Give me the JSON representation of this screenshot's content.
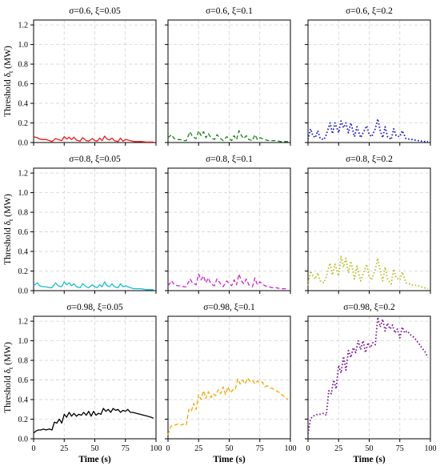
{
  "ylabel": "Threshold δ",
  "ylabel_sub": "t",
  "ylabel_unit": " (MW)",
  "xlabel": "Time (s)",
  "chart_data": [
    {
      "type": "line",
      "title": "σ=0.6, ξ=0.05",
      "color": "#e41a1c",
      "dash": "solid",
      "xlim": [
        0,
        100
      ],
      "ylim": [
        0,
        1.25
      ],
      "x": [
        0,
        3,
        5,
        8,
        10,
        13,
        15,
        18,
        20,
        23,
        25,
        27,
        29,
        31,
        33,
        35,
        38,
        40,
        43,
        45,
        48,
        50,
        52,
        54,
        56,
        58,
        60,
        62,
        64,
        66,
        69,
        71,
        73,
        75,
        77,
        79,
        82,
        85,
        88,
        92,
        95,
        98
      ],
      "y": [
        0.06,
        0.05,
        0.035,
        0.03,
        0.03,
        0.02,
        0.01,
        0.04,
        0.03,
        0.02,
        0.06,
        0.035,
        0.055,
        0.03,
        0.055,
        0.025,
        0.015,
        0.05,
        0.02,
        0.015,
        0.04,
        0.02,
        0.015,
        0.045,
        0.02,
        0.065,
        0.035,
        0.025,
        0.045,
        0.02,
        0.01,
        0.045,
        0.015,
        0.03,
        0.025,
        0.02,
        0.01,
        0.01,
        0.01,
        0.005,
        0.005,
        0.005
      ]
    },
    {
      "type": "line",
      "title": "σ=0.6, ξ=0.1",
      "color": "#1a7f1a",
      "dash": "dashed",
      "xlim": [
        0,
        100
      ],
      "ylim": [
        0,
        1.25
      ],
      "x": [
        0,
        3,
        5,
        8,
        10,
        13,
        15,
        18,
        20,
        23,
        25,
        27,
        29,
        31,
        33,
        35,
        38,
        40,
        43,
        45,
        48,
        50,
        52,
        54,
        56,
        58,
        60,
        62,
        64,
        66,
        69,
        71,
        73,
        75,
        77,
        79,
        82,
        85,
        88,
        92,
        95,
        98
      ],
      "y": [
        0.05,
        0.08,
        0.04,
        0.03,
        0.03,
        0.02,
        0.02,
        0.11,
        0.06,
        0.04,
        0.12,
        0.07,
        0.11,
        0.05,
        0.09,
        0.05,
        0.03,
        0.08,
        0.04,
        0.02,
        0.06,
        0.04,
        0.02,
        0.07,
        0.03,
        0.12,
        0.07,
        0.04,
        0.07,
        0.03,
        0.02,
        0.08,
        0.03,
        0.05,
        0.04,
        0.03,
        0.02,
        0.02,
        0.02,
        0.01,
        0.01,
        0.01
      ]
    },
    {
      "type": "line",
      "title": "σ=0.6, ξ=0.2",
      "color": "#1a1acc",
      "dash": "dotted",
      "xlim": [
        0,
        100
      ],
      "ylim": [
        0,
        1.25
      ],
      "x": [
        0,
        2,
        4,
        6,
        8,
        10,
        13,
        15,
        18,
        20,
        22,
        25,
        27,
        29,
        31,
        33,
        35,
        38,
        40,
        43,
        45,
        48,
        50,
        52,
        55,
        57,
        59,
        61,
        63,
        65,
        68,
        70,
        72,
        75,
        77,
        80,
        85,
        90,
        95,
        98
      ],
      "y": [
        0.03,
        0.14,
        0.07,
        0.05,
        0.12,
        0.04,
        0.03,
        0.08,
        0.2,
        0.09,
        0.2,
        0.1,
        0.22,
        0.15,
        0.2,
        0.1,
        0.2,
        0.06,
        0.16,
        0.05,
        0.1,
        0.17,
        0.08,
        0.06,
        0.14,
        0.24,
        0.12,
        0.05,
        0.16,
        0.06,
        0.03,
        0.14,
        0.07,
        0.06,
        0.12,
        0.04,
        0.03,
        0.02,
        0.01,
        0.01
      ]
    },
    {
      "type": "line",
      "title": "σ=0.8, ξ=0.05",
      "color": "#17becf",
      "dash": "solid",
      "xlim": [
        0,
        100
      ],
      "ylim": [
        0,
        1.25
      ],
      "x": [
        0,
        3,
        5,
        8,
        10,
        13,
        15,
        18,
        20,
        23,
        25,
        27,
        29,
        31,
        33,
        35,
        38,
        40,
        43,
        45,
        48,
        50,
        52,
        54,
        56,
        58,
        60,
        62,
        64,
        66,
        69,
        71,
        73,
        75,
        77,
        79,
        82,
        85,
        88,
        92,
        95,
        98
      ],
      "y": [
        0.05,
        0.08,
        0.05,
        0.04,
        0.04,
        0.03,
        0.03,
        0.08,
        0.05,
        0.04,
        0.09,
        0.06,
        0.08,
        0.05,
        0.07,
        0.04,
        0.03,
        0.07,
        0.04,
        0.03,
        0.06,
        0.04,
        0.03,
        0.06,
        0.04,
        0.09,
        0.05,
        0.04,
        0.07,
        0.04,
        0.03,
        0.07,
        0.04,
        0.05,
        0.04,
        0.03,
        0.02,
        0.02,
        0.02,
        0.01,
        0.01,
        0.01
      ]
    },
    {
      "type": "line",
      "title": "σ=0.8, ξ=0.1",
      "color": "#cc22cc",
      "dash": "dashed",
      "xlim": [
        0,
        100
      ],
      "ylim": [
        0,
        1.25
      ],
      "x": [
        0,
        3,
        5,
        8,
        10,
        13,
        15,
        18,
        20,
        23,
        25,
        27,
        29,
        31,
        33,
        35,
        38,
        40,
        43,
        45,
        48,
        50,
        52,
        54,
        56,
        58,
        60,
        62,
        64,
        66,
        69,
        71,
        73,
        75,
        77,
        79,
        82,
        85,
        88,
        92,
        95,
        98
      ],
      "y": [
        0.05,
        0.1,
        0.06,
        0.05,
        0.05,
        0.04,
        0.04,
        0.12,
        0.08,
        0.06,
        0.17,
        0.11,
        0.15,
        0.08,
        0.13,
        0.07,
        0.05,
        0.12,
        0.07,
        0.04,
        0.1,
        0.07,
        0.05,
        0.11,
        0.06,
        0.17,
        0.1,
        0.07,
        0.12,
        0.06,
        0.04,
        0.13,
        0.06,
        0.09,
        0.07,
        0.05,
        0.04,
        0.03,
        0.03,
        0.02,
        0.02,
        0.02
      ]
    },
    {
      "type": "line",
      "title": "σ=0.8, ξ=0.2",
      "color": "#bdbd22",
      "dash": "dotted",
      "xlim": [
        0,
        100
      ],
      "ylim": [
        0,
        1.25
      ],
      "x": [
        0,
        2,
        4,
        6,
        8,
        10,
        13,
        15,
        18,
        20,
        22,
        25,
        27,
        29,
        31,
        33,
        35,
        38,
        40,
        43,
        45,
        48,
        50,
        52,
        55,
        57,
        59,
        61,
        63,
        65,
        68,
        70,
        72,
        75,
        77,
        80,
        85,
        90,
        95,
        98
      ],
      "y": [
        0.05,
        0.2,
        0.15,
        0.12,
        0.18,
        0.1,
        0.08,
        0.14,
        0.28,
        0.16,
        0.27,
        0.15,
        0.35,
        0.24,
        0.33,
        0.18,
        0.3,
        0.12,
        0.25,
        0.1,
        0.17,
        0.27,
        0.14,
        0.11,
        0.22,
        0.33,
        0.2,
        0.1,
        0.24,
        0.12,
        0.07,
        0.22,
        0.13,
        0.11,
        0.19,
        0.08,
        0.06,
        0.05,
        0.03,
        0.02
      ]
    },
    {
      "type": "line",
      "title": "σ=0.98, ξ=0.05",
      "color": "#000000",
      "dash": "solid",
      "xlim": [
        0,
        100
      ],
      "ylim": [
        0,
        1.25
      ],
      "x": [
        0,
        2,
        4,
        6,
        8,
        10,
        13,
        15,
        17,
        19,
        21,
        23,
        25,
        27,
        29,
        31,
        33,
        35,
        37,
        39,
        41,
        43,
        45,
        47,
        49,
        51,
        53,
        55,
        57,
        59,
        61,
        63,
        65,
        67,
        69,
        71,
        73,
        75,
        77,
        79,
        81,
        84,
        87,
        90,
        93,
        96,
        98
      ],
      "y": [
        0.06,
        0.08,
        0.09,
        0.09,
        0.1,
        0.09,
        0.1,
        0.09,
        0.17,
        0.16,
        0.2,
        0.16,
        0.25,
        0.22,
        0.27,
        0.23,
        0.26,
        0.23,
        0.25,
        0.24,
        0.27,
        0.24,
        0.28,
        0.23,
        0.28,
        0.24,
        0.26,
        0.25,
        0.31,
        0.28,
        0.3,
        0.27,
        0.31,
        0.29,
        0.3,
        0.27,
        0.29,
        0.28,
        0.3,
        0.27,
        0.27,
        0.26,
        0.25,
        0.24,
        0.23,
        0.22,
        0.21
      ]
    },
    {
      "type": "line",
      "title": "σ=0.98, ξ=0.1",
      "color": "#f5a300",
      "dash": "dashed",
      "xlim": [
        0,
        100
      ],
      "ylim": [
        0,
        1.25
      ],
      "x": [
        0,
        2,
        4,
        6,
        8,
        10,
        13,
        15,
        17,
        19,
        21,
        23,
        25,
        27,
        29,
        31,
        33,
        35,
        37,
        39,
        41,
        43,
        45,
        47,
        49,
        51,
        53,
        55,
        57,
        59,
        61,
        63,
        65,
        67,
        69,
        71,
        73,
        75,
        77,
        79,
        81,
        84,
        87,
        90,
        93,
        96,
        98
      ],
      "y": [
        0.04,
        0.12,
        0.14,
        0.14,
        0.15,
        0.14,
        0.15,
        0.14,
        0.3,
        0.28,
        0.36,
        0.3,
        0.45,
        0.4,
        0.49,
        0.41,
        0.48,
        0.42,
        0.46,
        0.44,
        0.5,
        0.46,
        0.53,
        0.45,
        0.53,
        0.47,
        0.5,
        0.5,
        0.61,
        0.56,
        0.6,
        0.56,
        0.62,
        0.59,
        0.6,
        0.56,
        0.59,
        0.57,
        0.58,
        0.53,
        0.54,
        0.52,
        0.5,
        0.48,
        0.45,
        0.42,
        0.4
      ]
    },
    {
      "type": "line",
      "title": "σ=0.98, ξ=0.2",
      "color": "#7a1a9a",
      "dash": "dotted",
      "xlim": [
        0,
        100
      ],
      "ylim": [
        0,
        1.25
      ],
      "x": [
        0,
        2,
        4,
        6,
        8,
        10,
        13,
        15,
        17,
        19,
        21,
        23,
        25,
        27,
        29,
        31,
        33,
        35,
        37,
        39,
        41,
        43,
        45,
        47,
        49,
        51,
        53,
        55,
        57,
        59,
        61,
        63,
        65,
        67,
        69,
        71,
        73,
        75,
        77,
        79,
        81,
        84,
        87,
        90,
        93,
        96,
        98
      ],
      "y": [
        0.05,
        0.2,
        0.23,
        0.24,
        0.25,
        0.25,
        0.26,
        0.24,
        0.49,
        0.46,
        0.6,
        0.51,
        0.75,
        0.67,
        0.84,
        0.7,
        0.9,
        0.83,
        0.93,
        0.88,
        1.0,
        0.91,
        1.0,
        0.88,
        0.98,
        0.93,
        0.98,
        0.96,
        1.24,
        1.14,
        1.22,
        1.1,
        1.18,
        1.12,
        1.16,
        1.08,
        1.12,
        1.03,
        1.14,
        1.08,
        1.1,
        1.06,
        1.03,
        0.98,
        0.93,
        0.88,
        0.83
      ]
    }
  ]
}
